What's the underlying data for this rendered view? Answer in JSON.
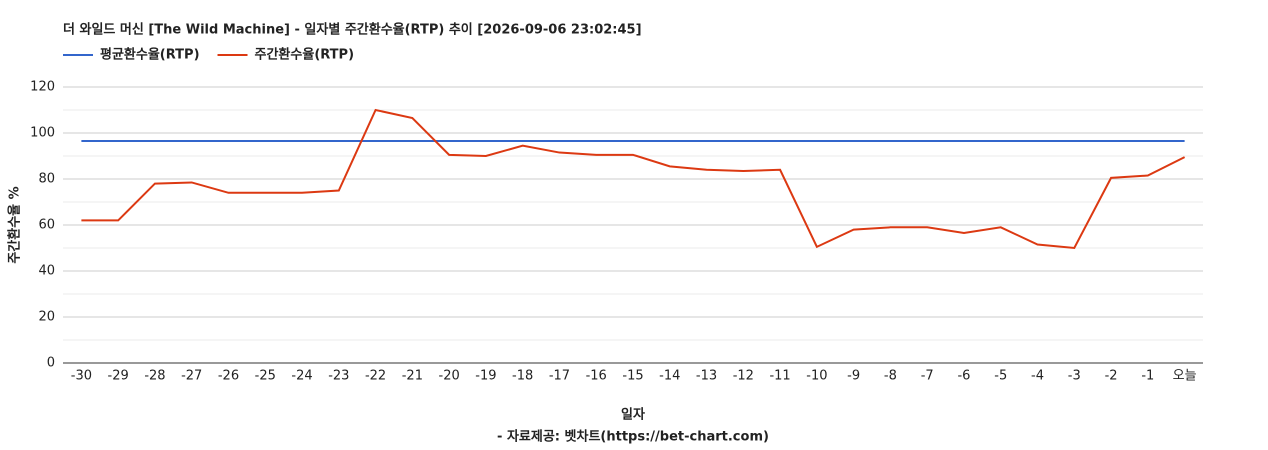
{
  "chart_data": {
    "type": "line",
    "title": "더 와일드 머신 [The Wild Machine] - 일자별 주간환수율(RTP) 추이 [2026-09-06 23:02:45]",
    "x_label": "일자",
    "y_label": "주간환수율 %",
    "source": "- 자료제공: 벳차트(https://bet-chart.com)",
    "categories": [
      "-30",
      "-29",
      "-28",
      "-27",
      "-26",
      "-25",
      "-24",
      "-23",
      "-22",
      "-21",
      "-20",
      "-19",
      "-18",
      "-17",
      "-16",
      "-15",
      "-14",
      "-13",
      "-12",
      "-11",
      "-10",
      "-9",
      "-8",
      "-7",
      "-6",
      "-5",
      "-4",
      "-3",
      "-2",
      "-1",
      "오늘"
    ],
    "series": [
      {
        "name": "평균환수율(RTP)",
        "color": "#3366cc",
        "values": [
          96.5,
          96.5,
          96.5,
          96.5,
          96.5,
          96.5,
          96.5,
          96.5,
          96.5,
          96.5,
          96.5,
          96.5,
          96.5,
          96.5,
          96.5,
          96.5,
          96.5,
          96.5,
          96.5,
          96.5,
          96.5,
          96.5,
          96.5,
          96.5,
          96.5,
          96.5,
          96.5,
          96.5,
          96.5,
          96.5,
          96.5
        ]
      },
      {
        "name": "주간환수율(RTP)",
        "color": "#dc3912",
        "values": [
          62,
          62,
          78,
          78.5,
          74,
          74,
          74,
          75,
          110,
          106.5,
          90.5,
          90,
          94.5,
          91.5,
          90.5,
          90.5,
          85.5,
          84,
          83.5,
          84,
          50.5,
          58,
          59,
          59,
          56.5,
          59,
          51.5,
          50,
          80.5,
          81.5,
          89.5
        ]
      }
    ],
    "ylim": [
      0,
      120
    ],
    "yticks": [
      0,
      20,
      40,
      60,
      80,
      100,
      120
    ],
    "grid": true
  }
}
